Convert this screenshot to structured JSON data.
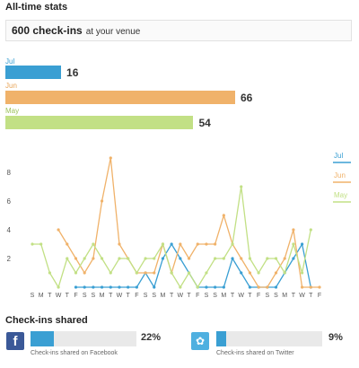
{
  "stats": {
    "title": "All-time stats",
    "total_count": "600 check-ins",
    "total_suffix": "at your venue",
    "months": [
      {
        "label": "Jul",
        "value": 16,
        "color": "#3a9fd3"
      },
      {
        "label": "Jun",
        "value": 66,
        "color": "#f0b26a"
      },
      {
        "label": "May",
        "value": 54,
        "color": "#c2e085"
      }
    ]
  },
  "chart_data": {
    "type": "line",
    "x": [
      "S",
      "M",
      "T",
      "W",
      "T",
      "F",
      "S",
      "S",
      "M",
      "T",
      "W",
      "T",
      "F",
      "S",
      "S",
      "M",
      "T",
      "W",
      "T",
      "F",
      "S",
      "S",
      "M",
      "T",
      "W",
      "T",
      "F",
      "S",
      "S",
      "M",
      "T",
      "W",
      "T",
      "F"
    ],
    "ylim": [
      0,
      10
    ],
    "yticks": [
      2,
      4,
      6,
      8
    ],
    "legend": "right",
    "series": [
      {
        "name": "Jul",
        "color": "#3a9fd3",
        "values": [
          null,
          null,
          null,
          null,
          null,
          0,
          0,
          0,
          0,
          0,
          0,
          0,
          0,
          1,
          0,
          2,
          3,
          2,
          1,
          0,
          0,
          0,
          0,
          2,
          1,
          0,
          0,
          0,
          0,
          1,
          2,
          3,
          0,
          null
        ]
      },
      {
        "name": "Jun",
        "color": "#f0b26a",
        "values": [
          null,
          null,
          null,
          4,
          3,
          2,
          1,
          2,
          6,
          9,
          3,
          2,
          1,
          1,
          1,
          3,
          1,
          3,
          2,
          3,
          3,
          3,
          5,
          3,
          2,
          1,
          0,
          0,
          1,
          2,
          4,
          0,
          0,
          0
        ]
      },
      {
        "name": "May",
        "color": "#c2e085",
        "values": [
          3,
          3,
          1,
          0,
          2,
          1,
          2,
          3,
          2,
          1,
          2,
          2,
          1,
          2,
          2,
          3,
          1,
          0,
          1,
          0,
          1,
          2,
          2,
          3,
          7,
          2,
          1,
          2,
          2,
          1,
          3,
          1,
          4,
          null
        ]
      }
    ]
  },
  "shares": {
    "title": "Check-ins shared",
    "facebook": {
      "percent": "22%",
      "fraction": 0.22,
      "caption": "Check-ins shared on Facebook",
      "icon": "facebook-icon"
    },
    "twitter": {
      "percent": "9%",
      "fraction": 0.09,
      "caption": "Check-ins shared on Twitter",
      "icon": "twitter-icon"
    }
  }
}
